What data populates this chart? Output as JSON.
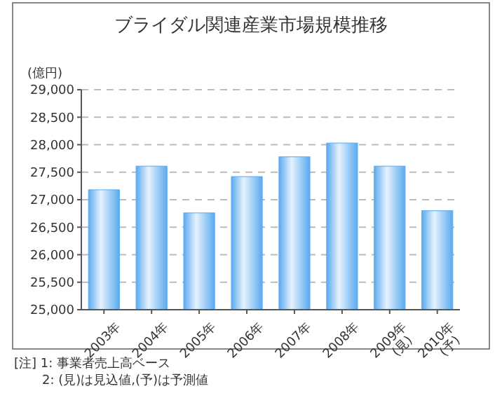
{
  "chart_data": {
    "type": "bar",
    "title": "ブライダル関連産業市場規模推移",
    "ylabel": "(億円)",
    "categories": [
      "2003年",
      "2004年",
      "2005年",
      "2006年",
      "2007年",
      "2008年",
      "2009年 (見)",
      "2010年 (予)"
    ],
    "values": [
      27180,
      27610,
      26760,
      27420,
      27780,
      28030,
      27610,
      26800
    ],
    "color": "#5aaaf0",
    "ylim": [
      25000,
      29000
    ],
    "yticks": [
      {
        "value": 25000,
        "label": "25,000"
      },
      {
        "value": 25500,
        "label": "25,500"
      },
      {
        "value": 26000,
        "label": "26,000"
      },
      {
        "value": 26500,
        "label": "26,500"
      },
      {
        "value": 27000,
        "label": "27,000"
      },
      {
        "value": 27500,
        "label": "27,500"
      },
      {
        "value": 28000,
        "label": "28,000"
      },
      {
        "value": 28500,
        "label": "28,500"
      },
      {
        "value": 29000,
        "label": "29,000"
      }
    ],
    "grid": "y",
    "annotations": [
      "[注] 1: 事業者売上高ベース",
      "2: (見)は見込値,(予)は予測値"
    ]
  }
}
